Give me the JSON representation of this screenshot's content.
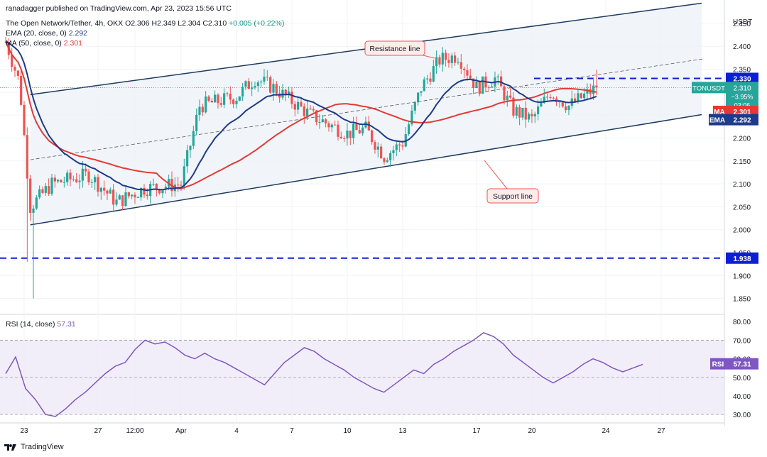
{
  "header": {
    "published": "ranadagger published on TradingView.com, Apr 23, 2023 15:56 UTC",
    "symbol": "The Open Network/Tether, 4h, OKX",
    "o_label": "O",
    "o": "2.306",
    "h_label": "H",
    "h": "2.349",
    "l_label": "L",
    "l": "2.304",
    "c_label": "C",
    "c": "2.310",
    "change": "+0.005 (+0.22%)",
    "ema_label": "EMA (20, close, 0)",
    "ema_value": "2.292",
    "ma_label": "MA (50, close, 0)",
    "ma_value": "2.301",
    "rsi_label": "RSI (14, close)",
    "rsi_value": "57.31"
  },
  "annotations": {
    "resistance": "Resistance line",
    "support": "Support line"
  },
  "price_badges": {
    "currency": "USDT",
    "level_top": "2.330",
    "ticker": "TONUSDT",
    "last": "2.310",
    "pct": "−3.95%",
    "countdown": "03:06",
    "ma_tag": "MA",
    "ma": "2.301",
    "ema_tag": "EMA",
    "ema": "2.292",
    "level_bottom": "1.938",
    "rsi_tag": "RSI",
    "rsi": "57.31"
  },
  "footer": {
    "brand": "TradingView"
  },
  "colors": {
    "up": "#26a69a",
    "down": "#ef5350",
    "ema": "#1e3a8a",
    "ma": "#e53935",
    "channel": "#1f3a5f",
    "dashed": "#0d1fd6",
    "rsi": "#7e57c2",
    "rsi_band": "#ede7f6"
  },
  "chart_data": [
    {
      "type": "candlestick",
      "title": "The Open Network/Tether, 4h, OKX",
      "ylim": [
        1.82,
        2.47
      ],
      "y_ticks": [
        "2.450",
        "2.400",
        "2.350",
        "2.300",
        "2.250",
        "2.200",
        "2.150",
        "2.100",
        "2.050",
        "2.000",
        "1.950",
        "1.900",
        "1.850"
      ],
      "x_ticks": [
        "23",
        "27",
        "12:00",
        "Apr",
        "4",
        "7",
        "10",
        "13",
        "17",
        "20",
        "24",
        "27"
      ],
      "horizontal_levels": [
        2.33,
        1.938
      ],
      "close_series_key_points": [
        {
          "x": "Mar 22 12:00",
          "y": 2.41
        },
        {
          "x": "Mar 23 06:00",
          "y": 2.32
        },
        {
          "x": "Mar 23 20:00",
          "y": 2.05
        },
        {
          "x": "Mar 25",
          "y": 2.1
        },
        {
          "x": "Mar 27",
          "y": 2.12
        },
        {
          "x": "Mar 28 12:00",
          "y": 2.06
        },
        {
          "x": "Mar 30",
          "y": 2.09
        },
        {
          "x": "Apr 1",
          "y": 2.1
        },
        {
          "x": "Apr 2",
          "y": 2.27
        },
        {
          "x": "Apr 4",
          "y": 2.29
        },
        {
          "x": "Apr 5",
          "y": 2.33
        },
        {
          "x": "Apr 6",
          "y": 2.31
        },
        {
          "x": "Apr 8",
          "y": 2.25
        },
        {
          "x": "Apr 10",
          "y": 2.21
        },
        {
          "x": "Apr 11",
          "y": 2.22
        },
        {
          "x": "Apr 12",
          "y": 2.16
        },
        {
          "x": "Apr 13",
          "y": 2.19
        },
        {
          "x": "Apr 14",
          "y": 2.31
        },
        {
          "x": "Apr 15",
          "y": 2.37
        },
        {
          "x": "Apr 16",
          "y": 2.38
        },
        {
          "x": "Apr 17",
          "y": 2.31
        },
        {
          "x": "Apr 18",
          "y": 2.33
        },
        {
          "x": "Apr 19",
          "y": 2.26
        },
        {
          "x": "Apr 20",
          "y": 2.24
        },
        {
          "x": "Apr 21",
          "y": 2.3
        },
        {
          "x": "Apr 22",
          "y": 2.27
        },
        {
          "x": "Apr 23 12:00",
          "y": 2.31
        }
      ],
      "ema20_value": 2.292,
      "ma50_value": 2.301,
      "resistance_line": [
        {
          "x": "Mar 23",
          "y": 2.29
        },
        {
          "x": "Apr 23",
          "y": 2.46
        }
      ],
      "support_line": [
        {
          "x": "Mar 23",
          "y": 2.005
        },
        {
          "x": "Apr 23",
          "y": 2.21
        }
      ]
    },
    {
      "type": "line",
      "title": "RSI (14, close)",
      "ylim": [
        27,
        82
      ],
      "y_ticks": [
        "80.00",
        "70.00",
        "60.00",
        "50.00",
        "40.00",
        "30.00"
      ],
      "band": [
        30,
        70
      ],
      "values": [
        52,
        61,
        44,
        38,
        30,
        29,
        33,
        38,
        42,
        47,
        52,
        56,
        58,
        65,
        70,
        68,
        69,
        66,
        62,
        60,
        63,
        60,
        58,
        55,
        52,
        49,
        46,
        52,
        58,
        62,
        66,
        64,
        60,
        57,
        54,
        50,
        47,
        44,
        42,
        46,
        50,
        54,
        52,
        57,
        60,
        64,
        67,
        70,
        74,
        72,
        68,
        62,
        58,
        54,
        50,
        47,
        50,
        53,
        57,
        60,
        58,
        55,
        53,
        55,
        57
      ]
    }
  ]
}
